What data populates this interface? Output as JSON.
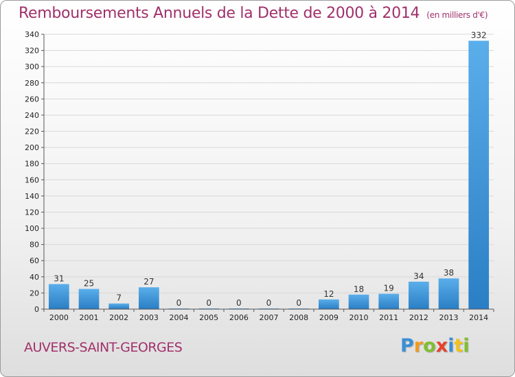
{
  "header": {
    "title": "Remboursements Annuels de la Dette de 2000 à 2014",
    "unit": "(en milliers d'€)"
  },
  "footer": {
    "commune": "AUVERS-SAINT-GEORGES",
    "logo_letters": [
      "P",
      "r",
      "o",
      "x",
      "i",
      "t",
      "i"
    ]
  },
  "colors": {
    "title": "#a0306a",
    "bar_top": "#5aaeea",
    "bar_bottom": "#2a7ec4"
  },
  "chart_data": {
    "type": "bar",
    "title": "Remboursements Annuels de la Dette de 2000 à 2014",
    "xlabel": "",
    "ylabel": "",
    "categories": [
      "2000",
      "2001",
      "2002",
      "2003",
      "2004",
      "2005",
      "2006",
      "2007",
      "2008",
      "2009",
      "2010",
      "2011",
      "2012",
      "2013",
      "2014"
    ],
    "values": [
      31,
      25,
      7,
      27,
      0,
      0,
      0,
      0,
      0,
      12,
      18,
      19,
      34,
      38,
      332
    ],
    "ylim": [
      0,
      340
    ],
    "yticks": [
      0,
      20,
      40,
      60,
      80,
      100,
      120,
      140,
      160,
      180,
      200,
      220,
      240,
      260,
      280,
      300,
      320,
      340
    ],
    "grid": true,
    "legend": "none"
  }
}
